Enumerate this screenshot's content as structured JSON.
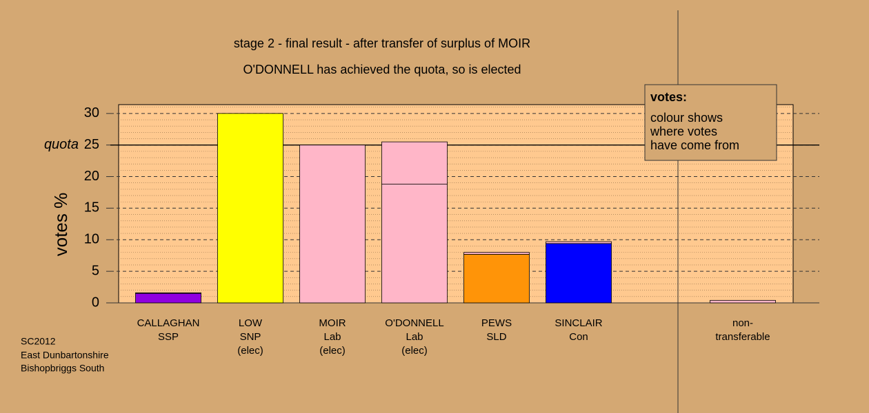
{
  "chart_data": {
    "type": "stacked_bar",
    "title": "stage 2 - final result - after transfer of surplus of MOIR",
    "subtitle": "O'DONNELL has achieved the quota, so is elected",
    "y_label": "votes %",
    "categories": [
      [
        "CALLAGHAN",
        "SSP"
      ],
      [
        "LOW",
        "SNP",
        "(elec)"
      ],
      [
        "MOIR",
        "Lab",
        "(elec)"
      ],
      [
        "O'DONNELL",
        "Lab",
        "(elec)"
      ],
      [
        "PEWS",
        "SLD"
      ],
      [
        "SINCLAIR",
        "Con"
      ],
      null,
      [
        "non-",
        "transferable"
      ]
    ],
    "series": [
      {
        "colors": [
          "#9000e0",
          "#ffff00",
          "#ffb6c8",
          "#ffb6c8",
          "#ff9408",
          "#0000ff",
          null,
          "#ffb6c8"
        ],
        "values": [
          1.5,
          30,
          25,
          18.8,
          7.7,
          9.4,
          null,
          0.4
        ]
      },
      {
        "colors": [
          "#ffb6c8",
          null,
          null,
          "#ffb6c8",
          "#ffb6c8",
          "#ffb6c8",
          null,
          null
        ],
        "values": [
          0.1,
          null,
          null,
          6.7,
          0.3,
          0.3,
          null,
          null
        ]
      }
    ],
    "ylim": [
      0,
      31.4
    ],
    "yticks": [
      0,
      5,
      10,
      15,
      20,
      25,
      30
    ],
    "minor_grid_step": 1,
    "quota": {
      "value": 25,
      "label": "quota"
    },
    "legend": {
      "title": "votes:",
      "lines": [
        "colour shows",
        "where votes",
        "have come from"
      ]
    },
    "footnote": [
      "SC2012",
      "East Dunbartonshire",
      "Bishopbriggs South"
    ]
  }
}
